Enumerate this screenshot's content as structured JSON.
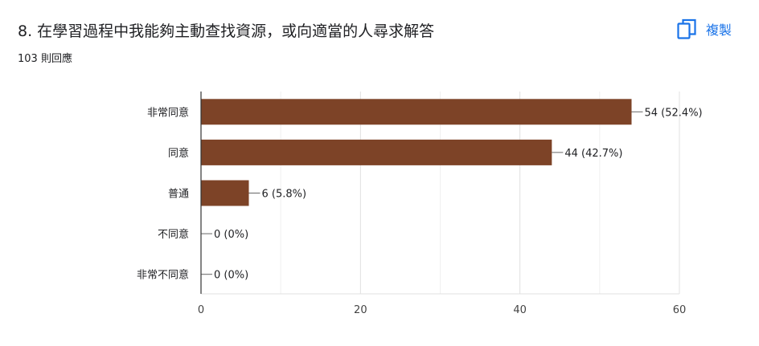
{
  "header": {
    "title": "8. 在學習過程中我能夠主動查找資源，或向適當的人尋求解答",
    "responses": "103 則回應",
    "copy_label": "複製",
    "copy_icon": "copy-icon"
  },
  "colors": {
    "bar": "#7d4327",
    "accent": "#1a73e8",
    "grid": "#e0e0e0",
    "axis": "#333333",
    "text": "#202124"
  },
  "chart_data": {
    "type": "bar",
    "orientation": "horizontal",
    "categories": [
      "非常同意",
      "同意",
      "普通",
      "不同意",
      "非常不同意"
    ],
    "values": [
      54,
      44,
      6,
      0,
      0
    ],
    "data_labels": [
      "54 (52.4%)",
      "44 (42.7%)",
      "6 (5.8%)",
      "0 (0%)",
      "0 (0%)"
    ],
    "xlim": [
      0,
      60
    ],
    "xticks": [
      0,
      20,
      40,
      60
    ],
    "grid": true,
    "legend": "none"
  }
}
